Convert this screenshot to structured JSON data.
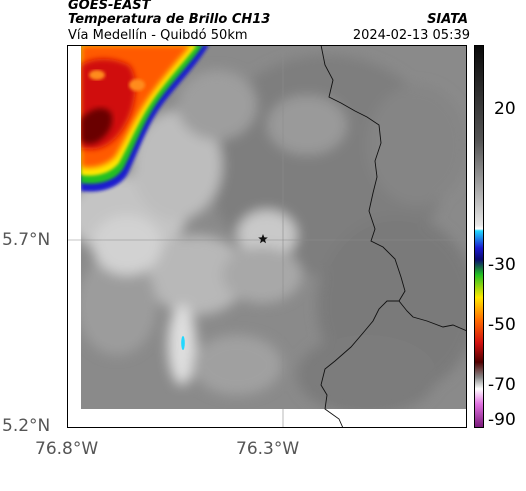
{
  "header": {
    "line1": "GOES-EAST",
    "line2": "Temperatura de Brillo CH13",
    "line3": "Vía Medellín - Quibdó 50km",
    "org": "SIATA",
    "datetime": "2024-02-13 05:39"
  },
  "axes": {
    "y_ticks": [
      "5.7°N",
      "5.2°N"
    ],
    "x_ticks": [
      "76.8°W",
      "76.3°W"
    ]
  },
  "colorbar": {
    "ticks": [
      "20",
      "-30",
      "-50",
      "-70",
      "-90"
    ]
  },
  "map": {
    "marker": "star-icon",
    "colors": {
      "gray_dark": "#7a7a7a",
      "gray_light": "#d8d8d8",
      "hot_red": "#d01010",
      "dark_red": "#6a0000",
      "orange": "#ff6a00",
      "yellow": "#ffe800",
      "green": "#22c022",
      "blue": "#1010c8",
      "cyan": "#22d8ff"
    }
  }
}
